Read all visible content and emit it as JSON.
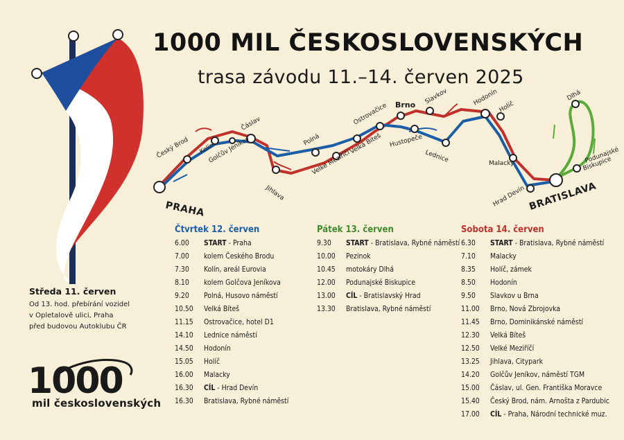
{
  "title": "1000 MIL ČESKOSLOVENSKÝCH",
  "subtitle": "trasa závodu 11.–14. červen 2025",
  "colors": {
    "background": "#f7efd8",
    "route_day1": "#1b5ea8",
    "route_day2": "#5aaa3c",
    "route_day3": "#c0312b",
    "flag_red": "#d0312d",
    "flag_blue": "#1d4f9e"
  },
  "map": {
    "cities": {
      "praha": "PRAHA",
      "cesky_brod": "Český Brod",
      "kolin": "Kolín",
      "caslav": "Čáslav",
      "golcuv": "Golčův Jeníkov",
      "jihlava": "Jihlava",
      "polna": "Polná",
      "velke_mezirici": "Velké Meziříčí",
      "velka_bites": "Velká Bíteš",
      "ostrovacice": "Ostrovačice",
      "brno": "Brno",
      "hustopece": "Hustopeče",
      "slavkov": "Slavkov",
      "lednice": "Lednice",
      "hodonin": "Hodonín",
      "holic": "Holíč",
      "malacky": "Malacky",
      "hrad_devin": "Hrad Devín",
      "bratislava": "BRATISLAVA",
      "dlha": "Dlhá",
      "podunajske": "Podunajské",
      "podunajske2": "Biskupice"
    }
  },
  "wednesday": {
    "heading": "Středa 11. červen",
    "lines": [
      "Od 13. hod. přebírání vozidel",
      "v Opletalově ulici, Praha",
      "před budovou Autoklubu ČR"
    ]
  },
  "thursday": {
    "heading": "Čtvrtek 12. červen",
    "rows": [
      {
        "time": "6.00",
        "bold": "START",
        "text": " - Praha"
      },
      {
        "time": "7.00",
        "bold": "",
        "text": "kolem Českého Brodu"
      },
      {
        "time": "7.30",
        "bold": "",
        "text": "Kolín, areál Eurovia"
      },
      {
        "time": "8.10",
        "bold": "",
        "text": "kolem Golčova Jeníkova"
      },
      {
        "time": "9.20",
        "bold": "",
        "text": "Polná, Husovo náměstí"
      },
      {
        "time": "10.50",
        "bold": "",
        "text": "Velká Bíteš"
      },
      {
        "time": "11.15",
        "bold": "",
        "text": "Ostrovačice, hotel D1"
      },
      {
        "time": "14.10",
        "bold": "",
        "text": "Lednice náměstí"
      },
      {
        "time": "14.50",
        "bold": "",
        "text": "Hodonín"
      },
      {
        "time": "15.05",
        "bold": "",
        "text": "Holíč"
      },
      {
        "time": "16.00",
        "bold": "",
        "text": "Malacky"
      },
      {
        "time": "16.30",
        "bold": "CÍL",
        "text": " - Hrad Devín"
      },
      {
        "time": "16.30",
        "bold": "",
        "text": "Bratislava, Rybné náměstí"
      }
    ]
  },
  "friday": {
    "heading": "Pátek 13. červen",
    "rows": [
      {
        "time": "9.30",
        "bold": "START",
        "text": " - Bratislava, Rybné náměstí"
      },
      {
        "time": "10.00",
        "bold": "",
        "text": "Pezinok"
      },
      {
        "time": "10.45",
        "bold": "",
        "text": "motokáry Dlhá"
      },
      {
        "time": "12.00",
        "bold": "",
        "text": "Podunajské Biskupice"
      },
      {
        "time": "13.00",
        "bold": "CÍL",
        "text": " - Bratislavský Hrad"
      },
      {
        "time": "13.30",
        "bold": "",
        "text": "Bratislava, Rybné náměstí"
      }
    ]
  },
  "saturday": {
    "heading": "Sobota 14. červen",
    "rows": [
      {
        "time": "6.30",
        "bold": "START",
        "text": " - Bratislava, Rybné náměstí"
      },
      {
        "time": "7.10",
        "bold": "",
        "text": "Malacky"
      },
      {
        "time": "8.35",
        "bold": "",
        "text": "Holíč, zámek"
      },
      {
        "time": "8.50",
        "bold": "",
        "text": "Hodonín"
      },
      {
        "time": "9.50",
        "bold": "",
        "text": "Slavkov u Brna"
      },
      {
        "time": "11.00",
        "bold": "",
        "text": "Brno, Nová Zbrojovka"
      },
      {
        "time": "11.45",
        "bold": "",
        "text": "Brno, Dominikánské náměstí"
      },
      {
        "time": "12.30",
        "bold": "",
        "text": "Velká Bíteš"
      },
      {
        "time": "12.50",
        "bold": "",
        "text": "Velké Meziříčí"
      },
      {
        "time": "13.25",
        "bold": "",
        "text": "Jihlava, Citypark"
      },
      {
        "time": "14.20",
        "bold": "",
        "text": "Golčův Jeníkov, náměstí TGM"
      },
      {
        "time": "15.00",
        "bold": "",
        "text": "Čáslav, ul. Gen. Františka Moravce"
      },
      {
        "time": "15.40",
        "bold": "",
        "text": "Český Brod, nám. Arnošta z Pardubic"
      },
      {
        "time": "17.00",
        "bold": "CÍL",
        "text": " - Praha, Národní technické muz."
      }
    ]
  },
  "logo": {
    "number": "1000",
    "text": "mil československých"
  }
}
